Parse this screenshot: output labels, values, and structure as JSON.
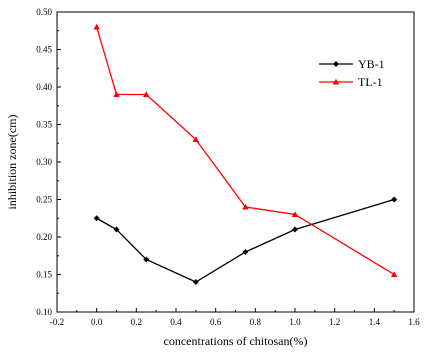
{
  "chart_data": {
    "type": "line",
    "xlabel": "concentrations of chitosan(%)",
    "ylabel": "inhibition zone(cm)",
    "xlim": [
      -0.2,
      1.6
    ],
    "ylim": [
      0.1,
      0.5
    ],
    "xticks": [
      "-0.2",
      "0.0",
      "0.2",
      "0.4",
      "0.6",
      "0.8",
      "1.0",
      "1.2",
      "1.4",
      "1.6"
    ],
    "yticks": [
      "0.10",
      "0.15",
      "0.20",
      "0.25",
      "0.30",
      "0.35",
      "0.40",
      "0.45",
      "0.50"
    ],
    "grid": false,
    "legend_position": "top-right",
    "series": [
      {
        "name": "YB-1",
        "color": "#000000",
        "marker": "diamond",
        "x": [
          0.0,
          0.1,
          0.25,
          0.5,
          0.75,
          1.0,
          1.5
        ],
        "y": [
          0.225,
          0.21,
          0.17,
          0.14,
          0.18,
          0.21,
          0.25
        ]
      },
      {
        "name": "TL-1",
        "color": "#ff0000",
        "marker": "triangle",
        "x": [
          0.0,
          0.1,
          0.25,
          0.5,
          0.75,
          1.0,
          1.5
        ],
        "y": [
          0.48,
          0.39,
          0.39,
          0.33,
          0.24,
          0.23,
          0.15
        ]
      }
    ]
  }
}
